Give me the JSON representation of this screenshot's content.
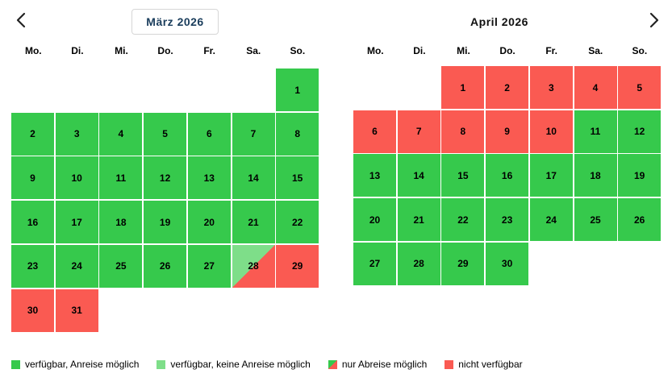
{
  "nav": {
    "prev_icon": "chevron-left-icon",
    "next_icon": "chevron-right-icon"
  },
  "months": [
    {
      "title": "März 2026",
      "weekdays": [
        "Mo.",
        "Di.",
        "Mi.",
        "Do.",
        "Fr.",
        "Sa.",
        "So."
      ],
      "first_weekday_index": 6,
      "days": [
        {
          "label": "1",
          "status": "available"
        },
        {
          "label": "2",
          "status": "available"
        },
        {
          "label": "3",
          "status": "available"
        },
        {
          "label": "4",
          "status": "available"
        },
        {
          "label": "5",
          "status": "available"
        },
        {
          "label": "6",
          "status": "available"
        },
        {
          "label": "7",
          "status": "available"
        },
        {
          "label": "8",
          "status": "available"
        },
        {
          "label": "9",
          "status": "available"
        },
        {
          "label": "10",
          "status": "available"
        },
        {
          "label": "11",
          "status": "available"
        },
        {
          "label": "12",
          "status": "available"
        },
        {
          "label": "13",
          "status": "available"
        },
        {
          "label": "14",
          "status": "available"
        },
        {
          "label": "15",
          "status": "available"
        },
        {
          "label": "16",
          "status": "available"
        },
        {
          "label": "17",
          "status": "available"
        },
        {
          "label": "18",
          "status": "available"
        },
        {
          "label": "19",
          "status": "available"
        },
        {
          "label": "20",
          "status": "available"
        },
        {
          "label": "21",
          "status": "available"
        },
        {
          "label": "22",
          "status": "available"
        },
        {
          "label": "23",
          "status": "available"
        },
        {
          "label": "24",
          "status": "available"
        },
        {
          "label": "25",
          "status": "available"
        },
        {
          "label": "26",
          "status": "available"
        },
        {
          "label": "27",
          "status": "available"
        },
        {
          "label": "28",
          "status": "departure_only"
        },
        {
          "label": "29",
          "status": "unavailable"
        },
        {
          "label": "30",
          "status": "unavailable"
        },
        {
          "label": "31",
          "status": "unavailable"
        }
      ]
    },
    {
      "title": "April 2026",
      "weekdays": [
        "Mo.",
        "Di.",
        "Mi.",
        "Do.",
        "Fr.",
        "Sa.",
        "So."
      ],
      "first_weekday_index": 2,
      "days": [
        {
          "label": "1",
          "status": "unavailable"
        },
        {
          "label": "2",
          "status": "unavailable"
        },
        {
          "label": "3",
          "status": "unavailable"
        },
        {
          "label": "4",
          "status": "unavailable"
        },
        {
          "label": "5",
          "status": "unavailable"
        },
        {
          "label": "6",
          "status": "unavailable"
        },
        {
          "label": "7",
          "status": "unavailable"
        },
        {
          "label": "8",
          "status": "unavailable"
        },
        {
          "label": "9",
          "status": "unavailable"
        },
        {
          "label": "10",
          "status": "unavailable"
        },
        {
          "label": "11",
          "status": "available"
        },
        {
          "label": "12",
          "status": "available"
        },
        {
          "label": "13",
          "status": "available"
        },
        {
          "label": "14",
          "status": "available"
        },
        {
          "label": "15",
          "status": "available"
        },
        {
          "label": "16",
          "status": "available"
        },
        {
          "label": "17",
          "status": "available"
        },
        {
          "label": "18",
          "status": "available"
        },
        {
          "label": "19",
          "status": "available"
        },
        {
          "label": "20",
          "status": "available"
        },
        {
          "label": "21",
          "status": "available"
        },
        {
          "label": "22",
          "status": "available"
        },
        {
          "label": "23",
          "status": "available"
        },
        {
          "label": "24",
          "status": "available"
        },
        {
          "label": "25",
          "status": "available"
        },
        {
          "label": "26",
          "status": "available"
        },
        {
          "label": "27",
          "status": "available"
        },
        {
          "label": "28",
          "status": "available"
        },
        {
          "label": "29",
          "status": "available"
        },
        {
          "label": "30",
          "status": "available"
        }
      ]
    }
  ],
  "legend": [
    {
      "label": "verfügbar, Anreise möglich",
      "swatch": "available"
    },
    {
      "label": "verfügbar, keine Anreise möglich",
      "swatch": "no_arrival"
    },
    {
      "label": "nur Abreise möglich",
      "swatch": "departure_only"
    },
    {
      "label": "nicht verfügbar",
      "swatch": "unavailable"
    }
  ],
  "colors": {
    "available": "#36c94c",
    "no_arrival": "#7ede89",
    "unavailable": "#fa5a52",
    "title_text": "#1a3d5c"
  }
}
